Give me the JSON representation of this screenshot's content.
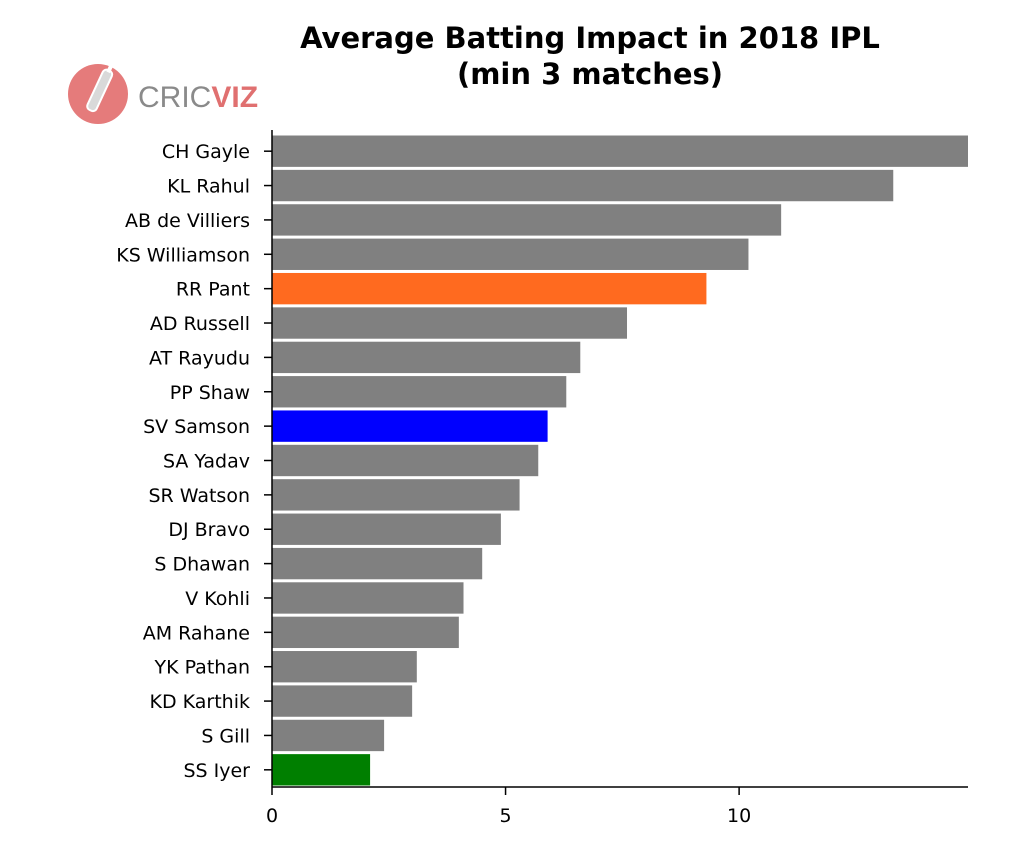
{
  "chart_data": {
    "type": "bar",
    "orientation": "horizontal",
    "title": [
      "Average Batting Impact in 2018 IPL",
      "(min 3 matches)"
    ],
    "categories": [
      "CH Gayle",
      "KL Rahul",
      "AB de Villiers",
      "KS Williamson",
      "RR Pant",
      "AD Russell",
      "AT Rayudu",
      "PP Shaw",
      "SV Samson",
      "SA Yadav",
      "SR Watson",
      "DJ Bravo",
      "S Dhawan",
      "V Kohli",
      "AM Rahane",
      "YK Pathan",
      "KD Karthik",
      "S Gill",
      "SS Iyer"
    ],
    "values": [
      14.9,
      13.3,
      10.9,
      10.2,
      9.3,
      7.6,
      6.6,
      6.3,
      5.9,
      5.7,
      5.3,
      4.9,
      4.5,
      4.1,
      4.0,
      3.1,
      3.0,
      2.4,
      2.1
    ],
    "colors": [
      "#808080",
      "#808080",
      "#808080",
      "#808080",
      "#ff6a1f",
      "#808080",
      "#808080",
      "#808080",
      "#0000ff",
      "#808080",
      "#808080",
      "#808080",
      "#808080",
      "#808080",
      "#808080",
      "#808080",
      "#808080",
      "#808080",
      "#007f00"
    ],
    "xticks": [
      0,
      5,
      10
    ],
    "xlim": [
      0,
      14.9
    ],
    "xlabel": "",
    "ylabel": "",
    "grid": false,
    "legend": "none"
  },
  "logo": {
    "text_a": "CRIC",
    "text_b": "VIZ",
    "color_a": "#8a8a8a",
    "color_b": "#e07070"
  }
}
